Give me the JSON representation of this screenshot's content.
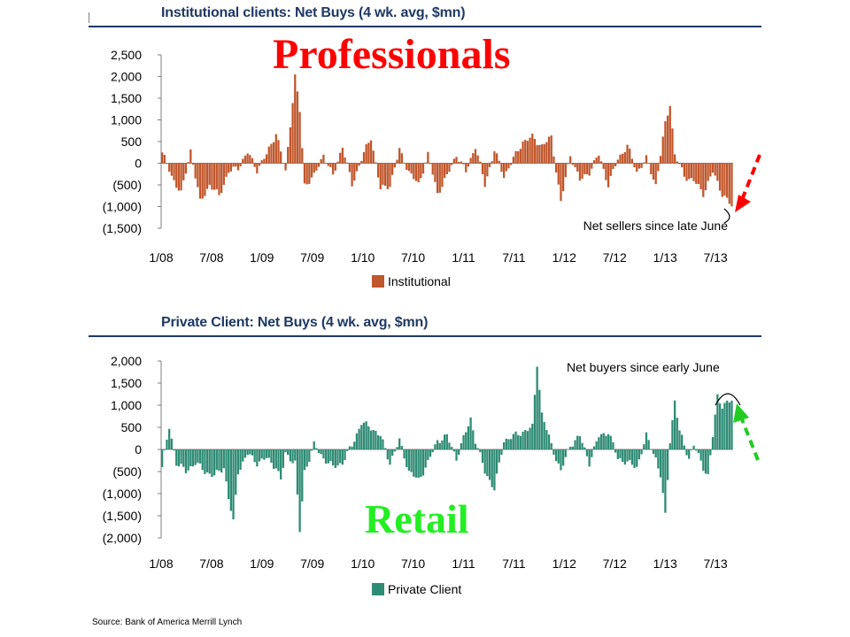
{
  "source": "Source: Bank of America Merrill Lynch",
  "chart_data": [
    {
      "type": "bar",
      "title": "Institutional clients: Net Buys (4 wk. avg, $mn)",
      "overlay_label": "Professionals",
      "overlay_color": "#ff0000",
      "bar_color": "#c0562b",
      "series": [
        {
          "name": "Institutional"
        }
      ],
      "x_tick_labels": [
        "1/08",
        "7/08",
        "1/09",
        "7/09",
        "1/10",
        "7/10",
        "1/11",
        "7/11",
        "1/12",
        "7/12",
        "1/13",
        "7/13"
      ],
      "y_tick_labels": [
        "2,500",
        "2,000",
        "1,500",
        "1,000",
        "500",
        "0",
        "(500)",
        "(1,000)",
        "(1,500)"
      ],
      "ylim": [
        -1500,
        2500
      ],
      "grid": false,
      "legend_position": "bottom",
      "annotation": "Net sellers since late June",
      "arrow_color": "#ff0000",
      "anchors": [
        [
          0,
          250
        ],
        [
          4,
          -300
        ],
        [
          8,
          -700
        ],
        [
          12,
          300
        ],
        [
          16,
          -900
        ],
        [
          20,
          -500
        ],
        [
          24,
          -750
        ],
        [
          28,
          -200
        ],
        [
          32,
          -100
        ],
        [
          36,
          250
        ],
        [
          40,
          -150
        ],
        [
          44,
          200
        ],
        [
          48,
          700
        ],
        [
          52,
          -200
        ],
        [
          56,
          2000
        ],
        [
          58,
          1200
        ],
        [
          60,
          -500
        ],
        [
          64,
          -300
        ],
        [
          68,
          200
        ],
        [
          72,
          -300
        ],
        [
          76,
          400
        ],
        [
          80,
          -500
        ],
        [
          84,
          100
        ],
        [
          88,
          600
        ],
        [
          92,
          -600
        ],
        [
          96,
          -500
        ],
        [
          100,
          300
        ],
        [
          104,
          -200
        ],
        [
          108,
          -500
        ],
        [
          112,
          200
        ],
        [
          116,
          -700
        ],
        [
          120,
          -300
        ],
        [
          124,
          200
        ],
        [
          128,
          -200
        ],
        [
          132,
          400
        ],
        [
          136,
          -500
        ],
        [
          140,
          300
        ],
        [
          144,
          -300
        ],
        [
          148,
          100
        ],
        [
          152,
          500
        ],
        [
          156,
          600
        ],
        [
          160,
          400
        ],
        [
          164,
          600
        ],
        [
          168,
          -900
        ],
        [
          172,
          200
        ],
        [
          176,
          -400
        ],
        [
          180,
          -200
        ],
        [
          184,
          200
        ],
        [
          188,
          -500
        ],
        [
          192,
          100
        ],
        [
          196,
          400
        ],
        [
          200,
          -200
        ],
        [
          204,
          100
        ],
        [
          208,
          -500
        ],
        [
          212,
          900
        ],
        [
          214,
          1380
        ],
        [
          216,
          200
        ],
        [
          220,
          -300
        ],
        [
          224,
          -400
        ],
        [
          228,
          -700
        ],
        [
          232,
          -200
        ],
        [
          236,
          -700
        ],
        [
          240,
          -1000
        ]
      ]
    },
    {
      "type": "bar",
      "title": "Private Client: Net Buys (4 wk. avg, $mn)",
      "overlay_label": "Retail",
      "overlay_color": "#22ee22",
      "bar_color": "#2e8b74",
      "series": [
        {
          "name": "Private Client"
        }
      ],
      "x_tick_labels": [
        "1/08",
        "7/08",
        "1/09",
        "7/09",
        "1/10",
        "7/10",
        "1/11",
        "7/11",
        "1/12",
        "7/12",
        "1/13",
        "7/13"
      ],
      "y_tick_labels": [
        "2,000",
        "1,500",
        "1,000",
        "500",
        "0",
        "(500)",
        "(1,000)",
        "(1,500)",
        "(2,000)"
      ],
      "ylim": [
        -2000,
        2000
      ],
      "grid": false,
      "legend_position": "bottom",
      "annotation": "Net buyers since early  June",
      "arrow_color": "#22cc22",
      "anchors": [
        [
          0,
          -400
        ],
        [
          3,
          500
        ],
        [
          6,
          -300
        ],
        [
          10,
          -500
        ],
        [
          14,
          -300
        ],
        [
          18,
          -500
        ],
        [
          22,
          -600
        ],
        [
          26,
          -400
        ],
        [
          28,
          -1100
        ],
        [
          30,
          -1650
        ],
        [
          32,
          -500
        ],
        [
          36,
          -100
        ],
        [
          40,
          -300
        ],
        [
          44,
          -200
        ],
        [
          48,
          -400
        ],
        [
          50,
          -700
        ],
        [
          52,
          -100
        ],
        [
          56,
          -300
        ],
        [
          58,
          -1850
        ],
        [
          60,
          -500
        ],
        [
          64,
          100
        ],
        [
          68,
          -200
        ],
        [
          72,
          -400
        ],
        [
          76,
          -300
        ],
        [
          80,
          100
        ],
        [
          84,
          600
        ],
        [
          88,
          500
        ],
        [
          92,
          300
        ],
        [
          96,
          -300
        ],
        [
          100,
          200
        ],
        [
          104,
          -500
        ],
        [
          108,
          -700
        ],
        [
          112,
          -300
        ],
        [
          116,
          200
        ],
        [
          120,
          300
        ],
        [
          124,
          -200
        ],
        [
          128,
          400
        ],
        [
          130,
          700
        ],
        [
          132,
          200
        ],
        [
          136,
          -500
        ],
        [
          140,
          -900
        ],
        [
          144,
          200
        ],
        [
          148,
          300
        ],
        [
          152,
          400
        ],
        [
          156,
          500
        ],
        [
          158,
          1950
        ],
        [
          160,
          800
        ],
        [
          164,
          100
        ],
        [
          168,
          -500
        ],
        [
          172,
          100
        ],
        [
          176,
          300
        ],
        [
          180,
          -300
        ],
        [
          184,
          300
        ],
        [
          188,
          400
        ],
        [
          192,
          -200
        ],
        [
          196,
          -300
        ],
        [
          200,
          -400
        ],
        [
          204,
          300
        ],
        [
          208,
          -200
        ],
        [
          210,
          -600
        ],
        [
          212,
          -1500
        ],
        [
          214,
          200
        ],
        [
          216,
          1100
        ],
        [
          218,
          400
        ],
        [
          222,
          -200
        ],
        [
          224,
          100
        ],
        [
          228,
          -400
        ],
        [
          230,
          -600
        ],
        [
          232,
          300
        ],
        [
          234,
          1200
        ],
        [
          236,
          1000
        ],
        [
          240,
          1100
        ]
      ]
    }
  ]
}
